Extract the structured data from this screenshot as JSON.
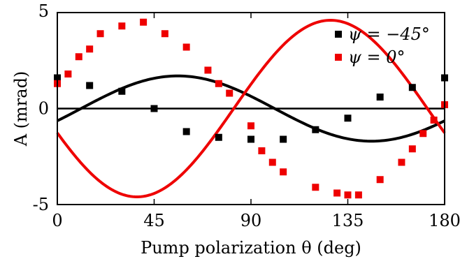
{
  "chart_data": {
    "type": "scatter",
    "title": "",
    "xlabel": "Pump polarization θ (deg)",
    "ylabel": "A (mrad)",
    "xlim": [
      0,
      180
    ],
    "ylim": [
      -5,
      5
    ],
    "xticks": [
      0,
      45,
      90,
      135,
      180
    ],
    "yticks": [
      -5,
      0,
      5
    ],
    "grid": false,
    "zero_line": true,
    "legend_position": "top-right",
    "series": [
      {
        "name": "ψ = −45°",
        "color": "#000000",
        "points": [
          [
            0,
            1.6
          ],
          [
            15,
            1.2
          ],
          [
            30,
            0.9
          ],
          [
            45,
            0.0
          ],
          [
            60,
            -1.2
          ],
          [
            75,
            -1.5
          ],
          [
            90,
            -1.6
          ],
          [
            105,
            -1.6
          ],
          [
            120,
            -1.1
          ],
          [
            135,
            -0.5
          ],
          [
            150,
            0.6
          ],
          [
            165,
            1.1
          ],
          [
            180,
            1.6
          ]
        ],
        "fit": {
          "amplitude": 1.7,
          "phase_deg": 11,
          "offset": 0
        }
      },
      {
        "name": "ψ = 0°",
        "color": "#ee0000",
        "points": [
          [
            0,
            1.3
          ],
          [
            5,
            1.8
          ],
          [
            10,
            2.7
          ],
          [
            15,
            3.1
          ],
          [
            20,
            3.9
          ],
          [
            30,
            4.3
          ],
          [
            40,
            4.5
          ],
          [
            50,
            3.9
          ],
          [
            60,
            3.2
          ],
          [
            70,
            2.0
          ],
          [
            75,
            1.3
          ],
          [
            80,
            0.8
          ],
          [
            90,
            -0.9
          ],
          [
            95,
            -2.2
          ],
          [
            100,
            -2.8
          ],
          [
            105,
            -3.3
          ],
          [
            120,
            -4.1
          ],
          [
            130,
            -4.4
          ],
          [
            135,
            -4.5
          ],
          [
            140,
            -4.5
          ],
          [
            150,
            -3.7
          ],
          [
            160,
            -2.8
          ],
          [
            165,
            -2.1
          ],
          [
            170,
            -1.3
          ],
          [
            175,
            -0.6
          ],
          [
            180,
            0.2
          ]
        ],
        "fit": {
          "amplitude": 4.6,
          "phase_deg": 82,
          "offset": 0
        }
      }
    ]
  }
}
